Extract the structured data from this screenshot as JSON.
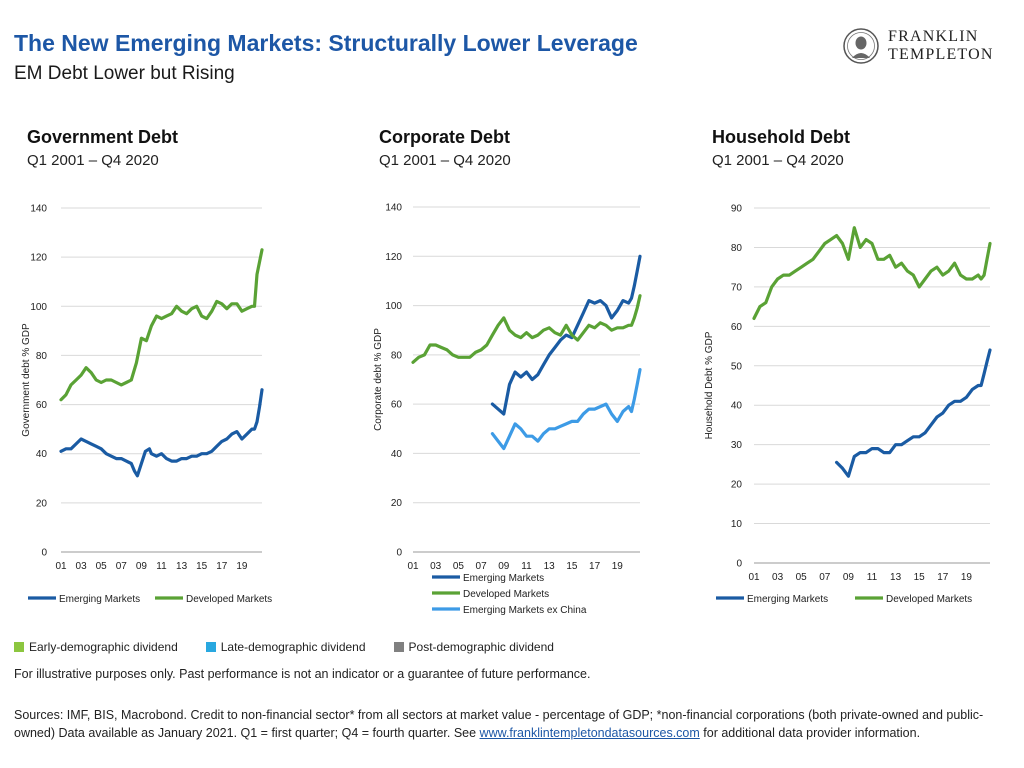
{
  "header": {
    "title": "The New Emerging Markets: Structurally Lower Leverage",
    "subtitle": "EM Debt Lower but Rising"
  },
  "logo": {
    "line1": "FRANKLIN",
    "line2": "TEMPLETON"
  },
  "panels": [
    {
      "title": "Government Debt",
      "period": "Q1 2001 – Q4 2020"
    },
    {
      "title": "Corporate Debt",
      "period": "Q1 2001 – Q4 2020"
    },
    {
      "title": "Household Debt",
      "period": "Q1 2001 – Q4 2020"
    }
  ],
  "colors": {
    "em": "#1a5ba3",
    "dm": "#5aa235",
    "em_ex_china": "#3d9be6",
    "title_blue": "#1d57a6"
  },
  "chart_data": [
    {
      "type": "line",
      "title": "Government Debt",
      "ylabel": "Government debt % GDP",
      "xticks": [
        "01",
        "03",
        "05",
        "07",
        "09",
        "11",
        "13",
        "15",
        "17",
        "19"
      ],
      "yticks": [
        0,
        20,
        40,
        60,
        80,
        100,
        120,
        140
      ],
      "ylim": [
        0,
        140
      ],
      "xlim": [
        2001,
        2021
      ],
      "legend": "bottom",
      "series": [
        {
          "name": "Emerging Markets",
          "color": "#1a5ba3",
          "x": [
            2001,
            2001.5,
            2002,
            2002.5,
            2003,
            2003.5,
            2004,
            2004.5,
            2005,
            2005.5,
            2006,
            2006.5,
            2007,
            2007.5,
            2008,
            2008.3,
            2008.6,
            2009,
            2009.4,
            2009.8,
            2010,
            2010.5,
            2011,
            2011.5,
            2012,
            2012.5,
            2013,
            2013.5,
            2014,
            2014.5,
            2015,
            2015.5,
            2016,
            2016.5,
            2017,
            2017.5,
            2018,
            2018.5,
            2019,
            2019.5,
            2020,
            2020.25,
            2020.5,
            2020.75,
            2021
          ],
          "y": [
            41,
            42,
            42,
            44,
            46,
            45,
            44,
            43,
            42,
            40,
            39,
            38,
            38,
            37,
            36,
            33,
            31,
            36,
            41,
            42,
            40,
            39,
            40,
            38,
            37,
            37,
            38,
            38,
            39,
            39,
            40,
            40,
            41,
            43,
            45,
            46,
            48,
            49,
            46,
            48,
            50,
            50,
            53,
            59,
            66
          ]
        },
        {
          "name": "Developed Markets",
          "color": "#5aa235",
          "x": [
            2001,
            2001.5,
            2002,
            2002.5,
            2003,
            2003.5,
            2004,
            2004.5,
            2005,
            2005.5,
            2006,
            2006.5,
            2007,
            2007.5,
            2008,
            2008.5,
            2009,
            2009.5,
            2010,
            2010.5,
            2011,
            2011.5,
            2012,
            2012.5,
            2013,
            2013.5,
            2014,
            2014.5,
            2015,
            2015.5,
            2016,
            2016.5,
            2017,
            2017.5,
            2018,
            2018.5,
            2019,
            2019.5,
            2020,
            2020.25,
            2020.5,
            2020.75,
            2021
          ],
          "y": [
            62,
            64,
            68,
            70,
            72,
            75,
            73,
            70,
            69,
            70,
            70,
            69,
            68,
            69,
            70,
            77,
            87,
            86,
            92,
            96,
            95,
            96,
            97,
            100,
            98,
            97,
            99,
            100,
            96,
            95,
            98,
            102,
            101,
            99,
            101,
            101,
            98,
            99,
            100,
            100,
            113,
            118,
            123
          ]
        }
      ]
    },
    {
      "type": "line",
      "title": "Corporate Debt",
      "ylabel": "Corporate debt % GDP",
      "xticks": [
        "01",
        "03",
        "05",
        "07",
        "09",
        "11",
        "13",
        "15",
        "17",
        "19"
      ],
      "yticks": [
        0,
        20,
        40,
        60,
        80,
        100,
        120,
        140
      ],
      "ylim": [
        0,
        140
      ],
      "xlim": [
        2001,
        2021
      ],
      "legend": "bottom",
      "series": [
        {
          "name": "Emerging Markets",
          "color": "#1a5ba3",
          "x": [
            2008,
            2008.5,
            2009,
            2009.5,
            2010,
            2010.5,
            2011,
            2011.5,
            2012,
            2012.5,
            2013,
            2013.5,
            2014,
            2014.5,
            2015,
            2015.5,
            2016,
            2016.5,
            2017,
            2017.5,
            2018,
            2018.5,
            2019,
            2019.5,
            2020,
            2020.25,
            2020.5,
            2020.75,
            2021
          ],
          "y": [
            60,
            58,
            56,
            68,
            73,
            71,
            73,
            70,
            72,
            76,
            80,
            83,
            86,
            88,
            87,
            92,
            97,
            102,
            101,
            102,
            100,
            95,
            98,
            102,
            101,
            103,
            108,
            114,
            120
          ]
        },
        {
          "name": "Developed Markets",
          "color": "#5aa235",
          "x": [
            2001,
            2001.5,
            2002,
            2002.5,
            2003,
            2003.5,
            2004,
            2004.5,
            2005,
            2005.5,
            2006,
            2006.5,
            2007,
            2007.5,
            2008,
            2008.5,
            2009,
            2009.5,
            2010,
            2010.5,
            2011,
            2011.5,
            2012,
            2012.5,
            2013,
            2013.5,
            2014,
            2014.5,
            2015,
            2015.5,
            2016,
            2016.5,
            2017,
            2017.5,
            2018,
            2018.5,
            2019,
            2019.5,
            2020,
            2020.25,
            2020.5,
            2020.75,
            2021
          ],
          "y": [
            77,
            79,
            80,
            84,
            84,
            83,
            82,
            80,
            79,
            79,
            79,
            81,
            82,
            84,
            88,
            92,
            95,
            90,
            88,
            87,
            89,
            87,
            88,
            90,
            91,
            89,
            88,
            92,
            88,
            86,
            89,
            92,
            91,
            93,
            92,
            90,
            91,
            91,
            92,
            92,
            95,
            99,
            104
          ]
        },
        {
          "name": "Emerging Markets ex China",
          "color": "#3d9be6",
          "x": [
            2008,
            2008.5,
            2009,
            2009.5,
            2010,
            2010.5,
            2011,
            2011.5,
            2012,
            2012.5,
            2013,
            2013.5,
            2014,
            2014.5,
            2015,
            2015.5,
            2016,
            2016.5,
            2017,
            2017.5,
            2018,
            2018.5,
            2019,
            2019.5,
            2020,
            2020.25,
            2020.5,
            2020.75,
            2021
          ],
          "y": [
            48,
            45,
            42,
            47,
            52,
            50,
            47,
            47,
            45,
            48,
            50,
            50,
            51,
            52,
            53,
            53,
            56,
            58,
            58,
            59,
            60,
            56,
            53,
            57,
            59,
            57,
            62,
            68,
            74
          ]
        }
      ]
    },
    {
      "type": "line",
      "title": "Household Debt",
      "ylabel": "Household Debt % GDP",
      "xticks": [
        "01",
        "03",
        "05",
        "07",
        "09",
        "11",
        "13",
        "15",
        "17",
        "19"
      ],
      "yticks": [
        0,
        10,
        20,
        30,
        40,
        50,
        60,
        70,
        80,
        90
      ],
      "ylim": [
        0,
        90
      ],
      "xlim": [
        2001,
        2021
      ],
      "legend": "bottom",
      "series": [
        {
          "name": "Emerging Markets",
          "color": "#1a5ba3",
          "x": [
            2008,
            2008.5,
            2009,
            2009.5,
            2010,
            2010.5,
            2011,
            2011.5,
            2012,
            2012.5,
            2013,
            2013.5,
            2014,
            2014.5,
            2015,
            2015.5,
            2016,
            2016.5,
            2017,
            2017.5,
            2018,
            2018.5,
            2019,
            2019.5,
            2020,
            2020.25,
            2020.5,
            2020.75,
            2021
          ],
          "y": [
            25.5,
            24,
            22,
            27,
            28,
            28,
            29,
            29,
            28,
            28,
            30,
            30,
            31,
            32,
            32,
            33,
            35,
            37,
            38,
            40,
            41,
            41,
            42,
            44,
            45,
            45,
            48,
            51,
            54
          ]
        },
        {
          "name": "Developed Markets",
          "color": "#5aa235",
          "x": [
            2001,
            2001.5,
            2002,
            2002.5,
            2003,
            2003.5,
            2004,
            2004.5,
            2005,
            2005.5,
            2006,
            2006.5,
            2007,
            2007.5,
            2008,
            2008.5,
            2009,
            2009.5,
            2010,
            2010.5,
            2011,
            2011.5,
            2012,
            2012.5,
            2013,
            2013.5,
            2014,
            2014.5,
            2015,
            2015.5,
            2016,
            2016.5,
            2017,
            2017.5,
            2018,
            2018.5,
            2019,
            2019.5,
            2020,
            2020.25,
            2020.5,
            2020.75,
            2021
          ],
          "y": [
            62,
            65,
            66,
            70,
            72,
            73,
            73,
            74,
            75,
            76,
            77,
            79,
            81,
            82,
            83,
            81,
            77,
            85,
            80,
            82,
            81,
            77,
            77,
            78,
            75,
            76,
            74,
            73,
            70,
            72,
            74,
            75,
            73,
            74,
            76,
            73,
            72,
            72,
            73,
            72,
            73,
            77,
            81
          ]
        }
      ]
    }
  ],
  "category_legend": [
    {
      "label": "Early-demographic dividend",
      "color": "#8cc63f"
    },
    {
      "label": "Late-demographic dividend",
      "color": "#29a8e0"
    },
    {
      "label": "Post-demographic dividend",
      "color": "#808080"
    }
  ],
  "footer": {
    "note": "For illustrative purposes only. Past performance is not an indicator or a guarantee of future performance.",
    "sources_pre": "Sources: IMF, BIS, Macrobond. Credit to non-financial sector* from all sectors at market value - percentage of GDP; *non-financial corporations (both private-owned and public-owned) Data available as January 2021. Q1 = first quarter; Q4 = fourth quarter. See ",
    "sources_link": "www.franklintempletondatasources.com",
    "sources_post": " for additional data provider information."
  }
}
